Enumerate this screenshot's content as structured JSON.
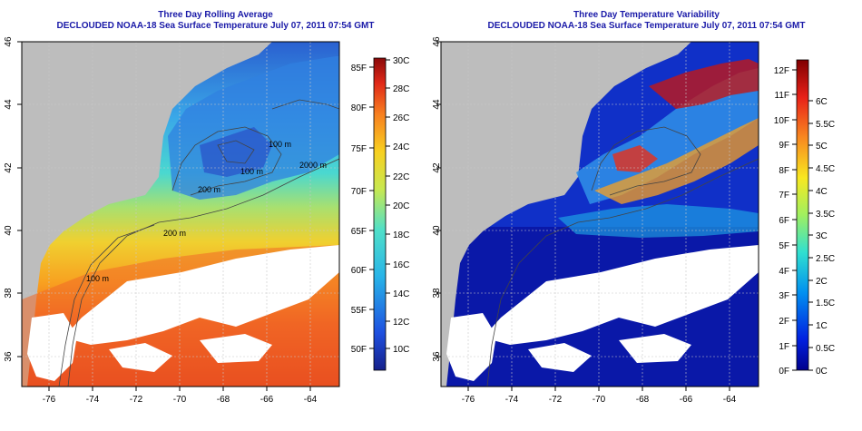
{
  "left_panel": {
    "title": "Three Day Rolling Average",
    "subtitle": "DECLOUDED NOAA-18 Sea Surface Temperature July 07, 2011 07:54 GMT",
    "x_ticks": [
      "-76",
      "-74",
      "-72",
      "-70",
      "-68",
      "-66",
      "-64"
    ],
    "y_ticks": [
      "36",
      "38",
      "40",
      "42",
      "44",
      "46"
    ],
    "colorbar_f_labels": [
      "50F",
      "55F",
      "60F",
      "65F",
      "70F",
      "75F",
      "80F",
      "85F"
    ],
    "colorbar_c_labels": [
      "10C",
      "12C",
      "14C",
      "16C",
      "18C",
      "20C",
      "22C",
      "24C",
      "26C",
      "28C",
      "30C"
    ],
    "contour_labels": [
      "100 m",
      "2000 m",
      "100 m",
      "200 m",
      "200 m",
      "100 m"
    ]
  },
  "right_panel": {
    "title": "Three Day Temperature Variability",
    "subtitle": "DECLOUDED NOAA-18 Sea Surface Temperature July 07, 2011 07:54 GMT",
    "x_ticks": [
      "-76",
      "-74",
      "-72",
      "-70",
      "-68",
      "-66",
      "-64"
    ],
    "y_ticks": [
      "36",
      "38",
      "40",
      "42",
      "44",
      "46"
    ],
    "colorbar_f_labels": [
      "0F",
      "1F",
      "2F",
      "3F",
      "4F",
      "5F",
      "6F",
      "7F",
      "8F",
      "9F",
      "10F",
      "11F",
      "12F"
    ],
    "colorbar_c_labels": [
      "0C",
      "0.5C",
      "1C",
      "1.5C",
      "2C",
      "2.5C",
      "3C",
      "3.5C",
      "4C",
      "4.5C",
      "5C",
      "5.5C",
      "6C"
    ]
  },
  "colors": {
    "title_color": "#1a1aa8",
    "land": "#bdbdbd",
    "cloud": "#ffffff",
    "sst_cold": "#1e40c8",
    "sst_warm": "#e84a1a",
    "var_low": "#0a0a96",
    "var_high": "#8b0000"
  }
}
